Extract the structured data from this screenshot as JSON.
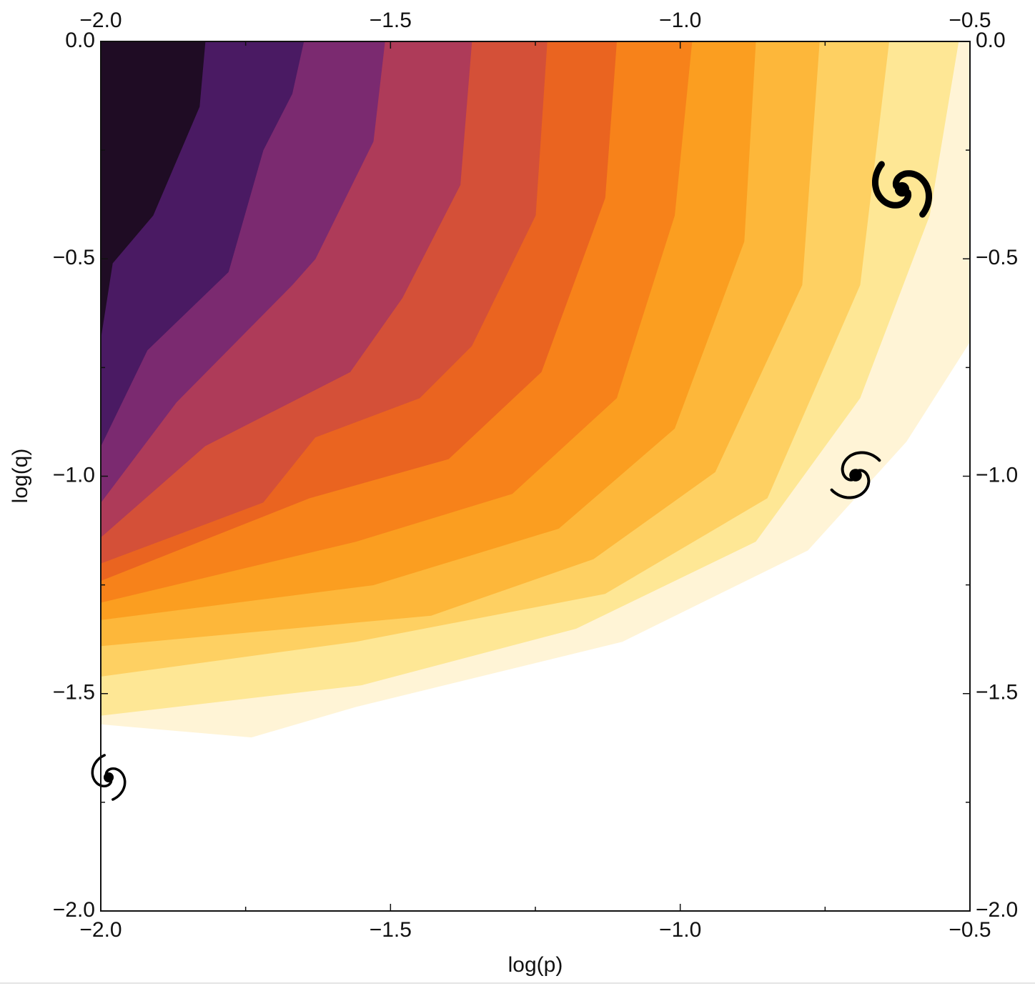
{
  "chart_data": {
    "type": "contour",
    "x_label": "log(p)",
    "y_label": "log(q)",
    "xlim": [
      -2,
      -0.5
    ],
    "ylim": [
      -2,
      0
    ],
    "xticks": [
      {
        "value": -2,
        "label": "−2.0"
      },
      {
        "value": -1.5,
        "label": "−1.5"
      },
      {
        "value": -1,
        "label": "−1.0"
      },
      {
        "value": -0.5,
        "label": "−0.5"
      }
    ],
    "yticks": [
      {
        "value": 0,
        "label": "0.0"
      },
      {
        "value": -0.5,
        "label": "−0.5"
      },
      {
        "value": -1,
        "label": "−1.0"
      },
      {
        "value": -1.5,
        "label": "−1.5"
      },
      {
        "value": -2,
        "label": "−2.0"
      }
    ],
    "minor_xticks": [
      -1.75,
      -1.25,
      -0.75
    ],
    "minor_yticks": [
      -0.25,
      -0.75,
      -1.25,
      -1.75
    ],
    "levels": [
      {
        "color": "#1f0c24",
        "x": [
          -1.82,
          -1.83,
          -1.91,
          -1.98,
          -2
        ],
        "y": [
          0,
          -0.15,
          -0.4,
          -0.51,
          -0.68
        ]
      },
      {
        "color": "#4a1a63",
        "x": [
          -1.65,
          -1.67,
          -1.72,
          -1.78,
          -1.92,
          -2
        ],
        "y": [
          0,
          -0.12,
          -0.25,
          -0.53,
          -0.71,
          -0.93
        ]
      },
      {
        "color": "#7b2a70",
        "x": [
          -1.51,
          -1.53,
          -1.63,
          -1.67,
          -1.87,
          -2
        ],
        "y": [
          0,
          -0.23,
          -0.5,
          -0.56,
          -0.83,
          -1.06
        ]
      },
      {
        "color": "#ae3b59",
        "x": [
          -1.36,
          -1.38,
          -1.48,
          -1.57,
          -1.82,
          -2
        ],
        "y": [
          0,
          -0.33,
          -0.59,
          -0.76,
          -0.93,
          -1.14
        ]
      },
      {
        "color": "#d45038",
        "x": [
          -1.23,
          -1.25,
          -1.36,
          -1.45,
          -1.63,
          -1.72,
          -2
        ],
        "y": [
          0,
          -0.4,
          -0.7,
          -0.82,
          -0.91,
          -1.06,
          -1.2
        ]
      },
      {
        "color": "#ea6420",
        "x": [
          -1.11,
          -1.13,
          -1.24,
          -1.4,
          -1.64,
          -2
        ],
        "y": [
          0,
          -0.36,
          -0.76,
          -0.96,
          -1.05,
          -1.24
        ]
      },
      {
        "color": "#f7821a",
        "x": [
          -0.98,
          -1.01,
          -1.11,
          -1.29,
          -1.56,
          -2
        ],
        "y": [
          0,
          -0.4,
          -0.82,
          -1.04,
          -1.15,
          -1.29
        ]
      },
      {
        "color": "#fb9e20",
        "x": [
          -0.87,
          -0.89,
          -1.01,
          -1.21,
          -1.53,
          -2
        ],
        "y": [
          0,
          -0.46,
          -0.89,
          -1.12,
          -1.25,
          -1.33
        ]
      },
      {
        "color": "#fdb73a",
        "x": [
          -0.76,
          -0.79,
          -0.94,
          -1.15,
          -1.43,
          -2
        ],
        "y": [
          0,
          -0.56,
          -0.99,
          -1.19,
          -1.32,
          -1.39
        ]
      },
      {
        "color": "#fed062",
        "x": [
          -0.64,
          -0.69,
          -0.85,
          -1.13,
          -1.56,
          -2
        ],
        "y": [
          0,
          -0.56,
          -1.05,
          -1.27,
          -1.38,
          -1.46
        ]
      },
      {
        "color": "#fee795",
        "x": [
          -0.52,
          -0.57,
          -0.69,
          -0.87,
          -1.18,
          -1.55,
          -2
        ],
        "y": [
          0,
          -0.4,
          -0.82,
          -1.15,
          -1.35,
          -1.48,
          -1.55
        ]
      },
      {
        "color": "#fff4d6",
        "x": [
          -0.5,
          -0.5,
          -0.61,
          -0.78,
          -1.1,
          -1.56,
          -1.74,
          -2
        ],
        "y": [
          -0.07,
          -0.69,
          -0.92,
          -1.17,
          -1.38,
          -1.53,
          -1.6,
          -1.57
        ]
      }
    ]
  }
}
